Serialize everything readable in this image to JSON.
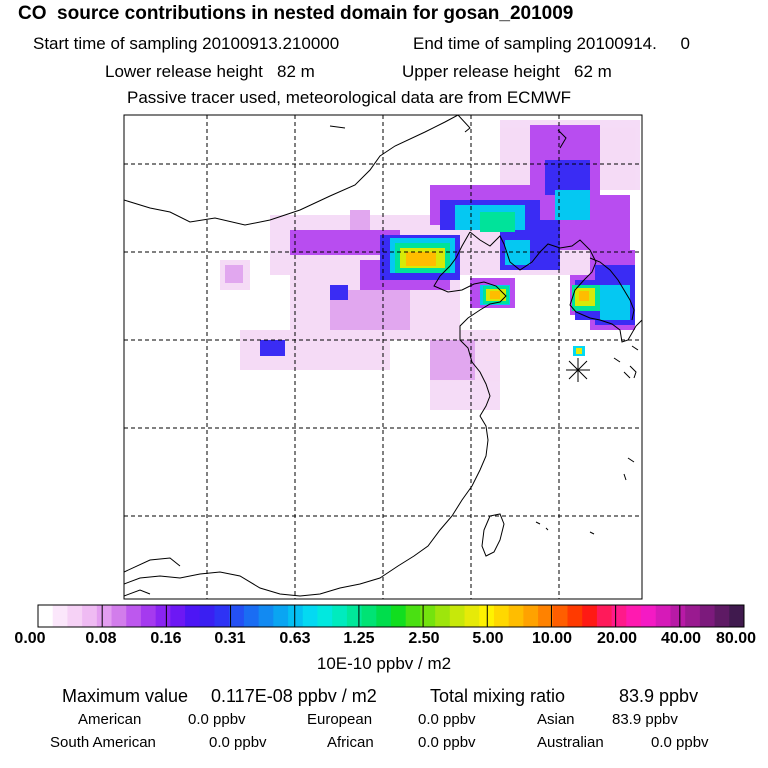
{
  "header": {
    "title": "CO  source contributions in nested domain for gosan_201009",
    "start_label": "Start time of sampling 20100913.210000",
    "end_label": "End time of sampling 20100914.     0",
    "lower_label": "Lower release height   82 m",
    "upper_label": "Upper release height   62 m",
    "tracer_note": "Passive tracer used, meteorological data are from ECMWF"
  },
  "colorbar": {
    "ticks": [
      "0.00",
      "0.08",
      "0.16",
      "0.31",
      "0.63",
      "1.25",
      "2.50",
      "5.00",
      "10.00",
      "20.00",
      "40.00",
      "80.00"
    ],
    "units": "10E-10 ppbv / m2",
    "colors": [
      "#ffffff",
      "#fbe7fb",
      "#f6d2f6",
      "#efbbf3",
      "#e39ef0",
      "#d27deb",
      "#bd58ee",
      "#a53aef",
      "#8a24f2",
      "#6d18f4",
      "#4d16f5",
      "#3a1ff2",
      "#2e33f5",
      "#2450f4",
      "#1a6df3",
      "#128af2",
      "#0aa5f2",
      "#05c0f3",
      "#04d9f2",
      "#02e8df",
      "#00ebbe",
      "#00e89a",
      "#00e374",
      "#00dd4c",
      "#11de1f",
      "#4ae012",
      "#74e30e",
      "#9ee50c",
      "#c7e80a",
      "#e6ea08",
      "#fff200",
      "#ffd800",
      "#ffbd00",
      "#ffa200",
      "#ff8200",
      "#ff5e00",
      "#ff3a00",
      "#ff1a14",
      "#ff1a5a",
      "#ff1a8a",
      "#ff1ab0",
      "#f41ac4",
      "#d61ab8",
      "#b81aa6",
      "#9a1a90",
      "#7c1a7c",
      "#5e1a64",
      "#401a4e"
    ]
  },
  "summary": {
    "max_label": "Maximum value",
    "max_value": "0.117E-08 ppbv / m2",
    "total_label": "Total mixing ratio",
    "total_value": "83.9 ppbv",
    "regions": [
      {
        "name": "American",
        "value": "0.0 ppbv"
      },
      {
        "name": "European",
        "value": "0.0 ppbv"
      },
      {
        "name": "Asian",
        "value": "83.9 ppbv"
      },
      {
        "name": "South American",
        "value": "0.0 ppbv"
      },
      {
        "name": "African",
        "value": "0.0 ppbv"
      },
      {
        "name": "Australian",
        "value": "0.0 ppbv"
      }
    ]
  }
}
